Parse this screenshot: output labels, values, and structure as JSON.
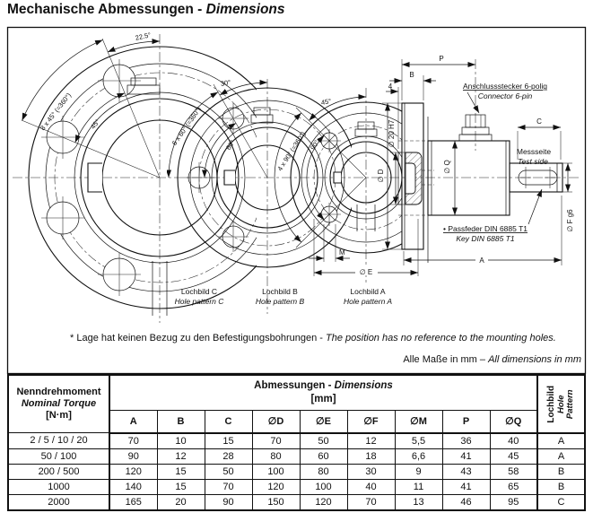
{
  "title": {
    "de": "Mechanische Abmessungen - ",
    "en": "Dimensions"
  },
  "drawing": {
    "flanges": [
      {
        "name_de": "Lochbild C",
        "name_en": "Hole pattern C",
        "count": "8 x 45° (=360°)",
        "step": "45°",
        "offset": "22.5°"
      },
      {
        "name_de": "Lochbild B",
        "name_en": "Hole pattern B",
        "count": "6 x 60° (=360°)",
        "step": "60°",
        "offset": "30°"
      },
      {
        "name_de": "Lochbild A",
        "name_en": "Hole pattern A",
        "count": "4 x 90° (=360°)",
        "step": "90°",
        "offset": "45°"
      }
    ],
    "dim_labels": {
      "P": "P",
      "B": "B",
      "four": "4",
      "C": "C",
      "A": "A",
      "M": "M",
      "E": "∅ E",
      "D": "∅ D",
      "bore": "∅ 20 H7",
      "Q": "∅ Q",
      "F": "∅ F g6"
    },
    "connector_de": "Anschlussstecker 6-polig",
    "connector_en": "Connector 6-pin",
    "testside_de": "Messseite",
    "testside_en": "Test side",
    "key_de": "• Passfeder DIN 6885 T1",
    "key_en": "Key DIN 6885 T1"
  },
  "notes": {
    "position_de": "* Lage hat keinen Bezug zu den Befestigungsbohrungen - ",
    "position_en": "The position has no reference to the mounting holes.",
    "units_de": "Alle Maße in mm – ",
    "units_en": "All dimensions in mm"
  },
  "table": {
    "torque_header_de": "Nenndrehmoment",
    "torque_header_en": "Nominal Torque",
    "torque_unit": "[N·m]",
    "dims_header_de": "Abmessungen - ",
    "dims_header_en": "Dimensions",
    "dims_unit": "[mm]",
    "columns": [
      "A",
      "B",
      "C",
      "∅D",
      "∅E",
      "∅F",
      "∅M",
      "P",
      "∅Q"
    ],
    "pattern_header_de": "Lochbild",
    "pattern_header_en1": "Hole",
    "pattern_header_en2": "Pattern",
    "rows": [
      [
        "2 / 5 / 10 / 20",
        "70",
        "10",
        "15",
        "70",
        "50",
        "12",
        "5,5",
        "36",
        "40",
        "A"
      ],
      [
        "50 / 100",
        "90",
        "12",
        "28",
        "80",
        "60",
        "18",
        "6,6",
        "41",
        "45",
        "A"
      ],
      [
        "200 / 500",
        "120",
        "15",
        "50",
        "100",
        "80",
        "30",
        "9",
        "43",
        "58",
        "B"
      ],
      [
        "1000",
        "140",
        "15",
        "70",
        "120",
        "100",
        "40",
        "11",
        "41",
        "65",
        "B"
      ],
      [
        "2000",
        "165",
        "20",
        "90",
        "150",
        "120",
        "70",
        "13",
        "46",
        "95",
        "C"
      ]
    ]
  }
}
